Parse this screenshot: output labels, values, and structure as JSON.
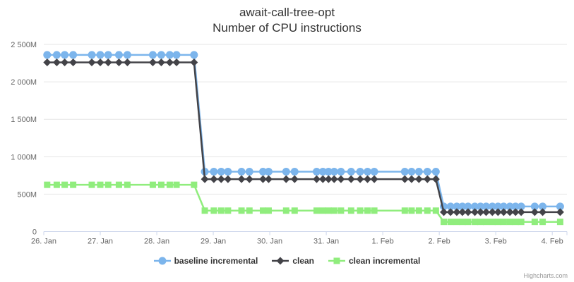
{
  "title": "await-call-tree-opt",
  "subtitle": "Number of CPU instructions",
  "credits": "Highcharts.com",
  "theme": {
    "background": "#ffffff",
    "grid_color": "#e6e6e6",
    "axis_line_color": "#ccd6eb",
    "axis_label_color": "#666666",
    "title_color": "#333333",
    "legend_text_color": "#333333",
    "credits_color": "#999999"
  },
  "chart_data": {
    "type": "line",
    "title": "await-call-tree-opt",
    "subtitle": "Number of CPU instructions",
    "xlabel": "",
    "ylabel": "",
    "x_unit": "days since 26. Jan",
    "xlim": [
      0,
      9.26
    ],
    "ylim": [
      0,
      2500
    ],
    "grid": "horizontal",
    "legend_position": "bottom",
    "x_ticks": [
      {
        "value": 0,
        "label": "26. Jan"
      },
      {
        "value": 1,
        "label": "27. Jan"
      },
      {
        "value": 2,
        "label": "28. Jan"
      },
      {
        "value": 3,
        "label": "29. Jan"
      },
      {
        "value": 4,
        "label": "30. Jan"
      },
      {
        "value": 5,
        "label": "31. Jan"
      },
      {
        "value": 6,
        "label": "1. Feb"
      },
      {
        "value": 7,
        "label": "2. Feb"
      },
      {
        "value": 8,
        "label": "3. Feb"
      },
      {
        "value": 9,
        "label": "4. Feb"
      }
    ],
    "y_ticks": [
      {
        "value": 0,
        "label": "0"
      },
      {
        "value": 500,
        "label": "500M"
      },
      {
        "value": 1000,
        "label": "1 000M"
      },
      {
        "value": 1500,
        "label": "1 500M"
      },
      {
        "value": 2000,
        "label": "2 000M"
      },
      {
        "value": 2500,
        "label": "2 500M"
      }
    ],
    "x": [
      0.06,
      0.23,
      0.37,
      0.52,
      0.85,
      1.0,
      1.14,
      1.33,
      1.48,
      1.93,
      2.08,
      2.23,
      2.35,
      2.66,
      2.85,
      3.01,
      3.14,
      3.26,
      3.5,
      3.64,
      3.88,
      3.98,
      4.29,
      4.44,
      4.83,
      4.94,
      5.04,
      5.14,
      5.26,
      5.44,
      5.6,
      5.73,
      5.85,
      6.39,
      6.51,
      6.64,
      6.79,
      6.94,
      7.08,
      7.2,
      7.31,
      7.41,
      7.51,
      7.63,
      7.73,
      7.83,
      7.94,
      8.04,
      8.14,
      8.25,
      8.35,
      8.45,
      8.69,
      8.83,
      9.14
    ],
    "y_unit": "M instructions",
    "series": [
      {
        "name": "baseline incremental",
        "color": "#7cb5ec",
        "marker": "circle",
        "values": [
          2360,
          2360,
          2360,
          2360,
          2360,
          2360,
          2360,
          2360,
          2360,
          2360,
          2360,
          2360,
          2360,
          2360,
          800,
          800,
          800,
          800,
          800,
          800,
          800,
          800,
          800,
          800,
          800,
          800,
          800,
          800,
          800,
          800,
          800,
          800,
          800,
          800,
          800,
          800,
          800,
          800,
          335,
          335,
          335,
          335,
          335,
          335,
          335,
          335,
          335,
          335,
          335,
          335,
          335,
          335,
          335,
          335,
          335
        ]
      },
      {
        "name": "clean",
        "color": "#434348",
        "marker": "diamond",
        "values": [
          2260,
          2260,
          2260,
          2260,
          2260,
          2260,
          2260,
          2260,
          2260,
          2260,
          2260,
          2260,
          2260,
          2260,
          700,
          700,
          700,
          700,
          700,
          700,
          700,
          700,
          700,
          700,
          700,
          700,
          700,
          700,
          700,
          700,
          700,
          700,
          700,
          700,
          700,
          700,
          700,
          700,
          260,
          260,
          260,
          260,
          260,
          260,
          260,
          260,
          260,
          260,
          260,
          260,
          260,
          260,
          260,
          260,
          260
        ]
      },
      {
        "name": "clean incremental",
        "color": "#90ed7d",
        "marker": "square",
        "values": [
          625,
          625,
          625,
          625,
          625,
          625,
          625,
          625,
          625,
          625,
          625,
          625,
          625,
          625,
          280,
          280,
          280,
          280,
          280,
          280,
          280,
          280,
          280,
          280,
          280,
          280,
          280,
          280,
          280,
          280,
          280,
          280,
          280,
          280,
          280,
          280,
          280,
          280,
          130,
          130,
          130,
          130,
          130,
          130,
          130,
          130,
          130,
          130,
          130,
          130,
          130,
          130,
          130,
          130,
          130
        ]
      }
    ]
  }
}
